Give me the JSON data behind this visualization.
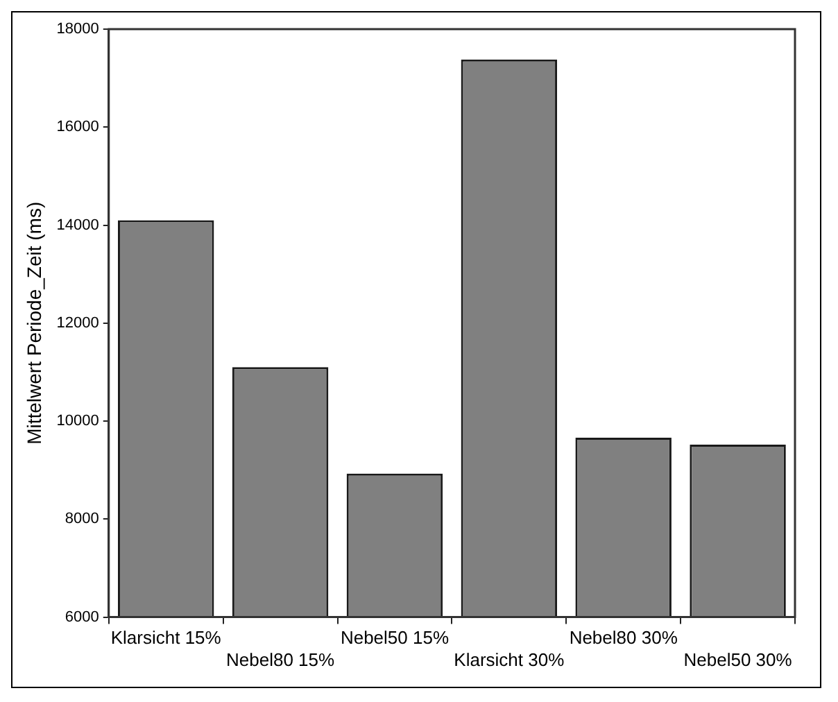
{
  "chart_data": {
    "type": "bar",
    "ylabel": "Mittelwert Periode_Zeit (ms)",
    "categories": [
      "Klarsicht 15%",
      "Nebel80 15%",
      "Nebel50 15%",
      "Klarsicht 30%",
      "Nebel80 30%",
      "Nebel50 30%"
    ],
    "values": [
      14100,
      11100,
      8930,
      17380,
      9660,
      9520
    ],
    "color": "#808080",
    "ylim": [
      6000,
      18000
    ],
    "yticks": [
      6000,
      8000,
      10000,
      12000,
      14000,
      16000,
      18000
    ],
    "grid": false
  }
}
